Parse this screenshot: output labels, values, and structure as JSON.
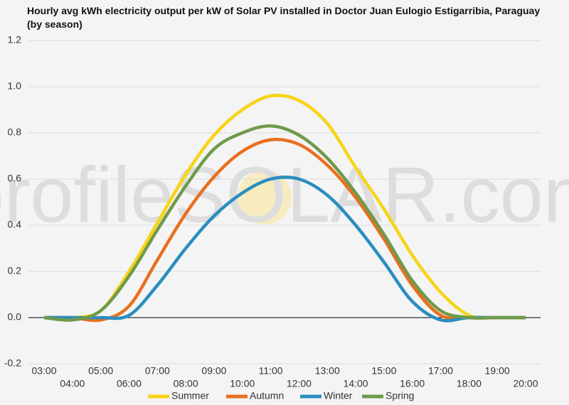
{
  "chart_data": {
    "type": "line",
    "title": "Hourly avg kWh electricity output per kW of Solar PV installed in Doctor Juan Eulogio Estigarribia, Paraguay (by season)",
    "watermark": "profileSOLAR.com",
    "categories": [
      "03:00",
      "04:00",
      "05:00",
      "06:00",
      "07:00",
      "08:00",
      "09:00",
      "10:00",
      "11:00",
      "12:00",
      "13:00",
      "14:00",
      "15:00",
      "16:00",
      "17:00",
      "18:00",
      "19:00",
      "20:00"
    ],
    "series": [
      {
        "name": "Summer",
        "color": "#f7d417",
        "values": [
          0,
          0,
          0.03,
          0.2,
          0.41,
          0.62,
          0.79,
          0.9,
          0.96,
          0.94,
          0.84,
          0.65,
          0.47,
          0.27,
          0.11,
          0.01,
          0,
          0
        ]
      },
      {
        "name": "Autumn",
        "color": "#e8701f",
        "values": [
          0,
          0,
          -0.01,
          0.05,
          0.25,
          0.45,
          0.61,
          0.72,
          0.77,
          0.75,
          0.66,
          0.52,
          0.34,
          0.14,
          0.01,
          0,
          0,
          0
        ]
      },
      {
        "name": "Winter",
        "color": "#2a8ebf",
        "values": [
          0,
          0,
          0,
          0.01,
          0.14,
          0.3,
          0.44,
          0.54,
          0.6,
          0.6,
          0.53,
          0.4,
          0.24,
          0.07,
          -0.01,
          0,
          0,
          0
        ]
      },
      {
        "name": "Spring",
        "color": "#6f9a4c",
        "values": [
          0,
          -0.01,
          0.03,
          0.18,
          0.38,
          0.57,
          0.73,
          0.8,
          0.83,
          0.79,
          0.69,
          0.54,
          0.36,
          0.16,
          0.03,
          0,
          0,
          0
        ]
      }
    ],
    "ylim": [
      -0.2,
      1.2
    ],
    "yticks": [
      -0.2,
      {
        "value": 0,
        "label": "0.0"
      },
      0.2,
      0.4,
      0.6,
      0.8,
      {
        "value": 1,
        "label": "1.0"
      },
      1.2
    ],
    "grid": true,
    "legend": "bottom"
  }
}
